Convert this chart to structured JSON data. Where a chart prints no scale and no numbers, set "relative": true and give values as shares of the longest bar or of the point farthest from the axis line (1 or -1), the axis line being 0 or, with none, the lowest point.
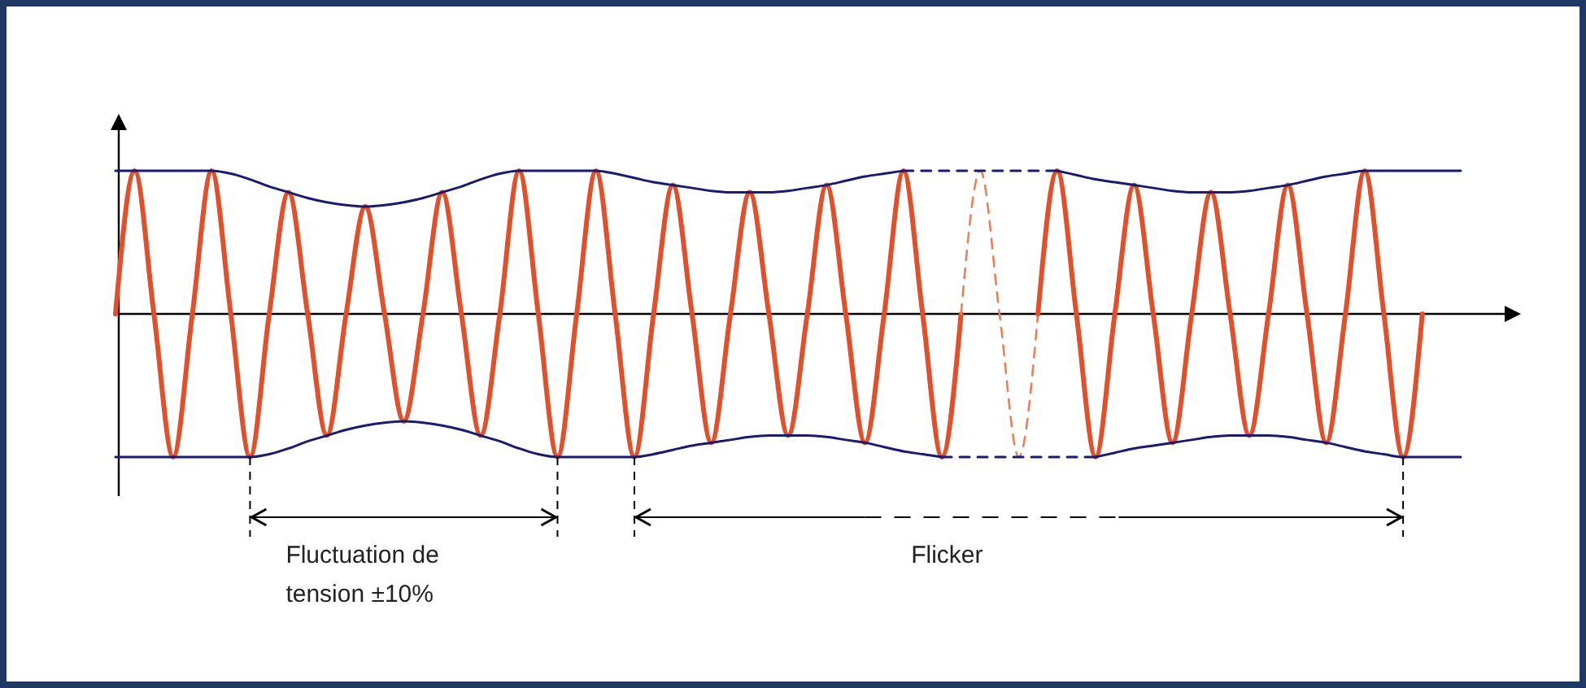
{
  "chart_data": {
    "type": "line",
    "relative": true,
    "categories": [
      null,
      null,
      null,
      null,
      null,
      null,
      null,
      null,
      null,
      null,
      null,
      null,
      null,
      null,
      null,
      null,
      null,
      null,
      null,
      null,
      null,
      null,
      null,
      null,
      null,
      null,
      null,
      null,
      null,
      null,
      null,
      null,
      null,
      null,
      null,
      null,
      null,
      null,
      null,
      null,
      null,
      null,
      null,
      null,
      null,
      null,
      null,
      null,
      null,
      null,
      null,
      null,
      null,
      null,
      null,
      null,
      null,
      null,
      null,
      null,
      null,
      null,
      null,
      null,
      null,
      null,
      null,
      null,
      null,
      null,
      null
    ],
    "series": [
      {
        "color": "#e0502a",
        "line_style": "solid",
        "values": [
          0,
          1,
          0,
          -1,
          0,
          1,
          0,
          -1,
          0,
          0.85,
          0,
          -0.85,
          0,
          0.75,
          0,
          -0.75,
          0,
          0.85,
          0,
          -0.85,
          0,
          1,
          0,
          -1,
          0,
          1,
          0,
          -1,
          0,
          0.9,
          0,
          -0.9,
          0,
          0.85,
          0,
          -0.85,
          0,
          0.9,
          0,
          -0.9,
          0,
          1,
          0,
          -1,
          0,
          null,
          null,
          null,
          null,
          null,
          null,
          null,
          null,
          null,
          null,
          null,
          null,
          null,
          null,
          null,
          null,
          null,
          null,
          null,
          null,
          null,
          null,
          null,
          null,
          null,
          null
        ]
      },
      {
        "color": "#e8805a",
        "line_style": "dashed",
        "values": [
          null,
          null,
          null,
          null,
          null,
          null,
          null,
          null,
          null,
          null,
          null,
          null,
          null,
          null,
          null,
          null,
          null,
          null,
          null,
          null,
          null,
          null,
          null,
          null,
          null,
          null,
          null,
          null,
          null,
          null,
          null,
          null,
          null,
          null,
          null,
          null,
          null,
          null,
          null,
          null,
          null,
          null,
          null,
          null,
          0,
          1,
          0,
          -1,
          0,
          null,
          null,
          null,
          null,
          null,
          null,
          null,
          null,
          null,
          null,
          null,
          null,
          null,
          null,
          null,
          null,
          null,
          null,
          null,
          null,
          null,
          null
        ]
      },
      {
        "color": "#e0502a",
        "line_style": "solid",
        "values": [
          null,
          null,
          null,
          null,
          null,
          null,
          null,
          null,
          null,
          null,
          null,
          null,
          null,
          null,
          null,
          null,
          null,
          null,
          null,
          null,
          null,
          null,
          null,
          null,
          null,
          null,
          null,
          null,
          null,
          null,
          null,
          null,
          null,
          null,
          null,
          null,
          null,
          null,
          null,
          null,
          null,
          null,
          null,
          null,
          null,
          null,
          null,
          null,
          0,
          1,
          0,
          -1,
          0,
          0.9,
          0,
          -0.9,
          0,
          0.85,
          0,
          -0.85,
          0,
          0.9,
          0,
          -0.9,
          0,
          1,
          0,
          -1,
          0,
          null,
          null
        ]
      },
      {
        "color": "#1a1a6e",
        "line_style": "solid",
        "values": [
          1,
          1,
          1,
          1,
          1,
          1,
          0.98,
          0.94,
          0.89,
          0.85,
          0.81,
          0.78,
          0.76,
          0.75,
          0.76,
          0.78,
          0.81,
          0.85,
          0.89,
          0.94,
          0.98,
          1,
          1,
          1,
          1,
          1,
          0.98,
          0.95,
          0.92,
          0.9,
          0.88,
          0.86,
          0.85,
          0.85,
          0.85,
          0.86,
          0.88,
          0.9,
          0.93,
          0.96,
          0.98,
          1,
          null,
          null,
          null,
          null,
          null,
          null,
          null,
          null,
          null,
          null,
          null,
          null,
          null,
          null,
          null,
          null,
          null,
          null,
          null,
          null,
          null,
          null,
          null,
          null,
          null,
          null,
          null,
          null,
          null
        ]
      },
      {
        "color": "#1a1a6e",
        "line_style": "dashed",
        "values": [
          null,
          null,
          null,
          null,
          null,
          null,
          null,
          null,
          null,
          null,
          null,
          null,
          null,
          null,
          null,
          null,
          null,
          null,
          null,
          null,
          null,
          null,
          null,
          null,
          null,
          null,
          null,
          null,
          null,
          null,
          null,
          null,
          null,
          null,
          null,
          null,
          null,
          null,
          null,
          null,
          null,
          1,
          1,
          1,
          1,
          1,
          1,
          1,
          1,
          1,
          null,
          null,
          null,
          null,
          null,
          null,
          null,
          null,
          null,
          null,
          null,
          null,
          null,
          null,
          null,
          null,
          null,
          null,
          null,
          null,
          null
        ]
      },
      {
        "color": "#1a1a6e",
        "line_style": "solid",
        "values": [
          null,
          null,
          null,
          null,
          null,
          null,
          null,
          null,
          null,
          null,
          null,
          null,
          null,
          null,
          null,
          null,
          null,
          null,
          null,
          null,
          null,
          null,
          null,
          null,
          null,
          null,
          null,
          null,
          null,
          null,
          null,
          null,
          null,
          null,
          null,
          null,
          null,
          null,
          null,
          null,
          null,
          null,
          null,
          null,
          null,
          null,
          null,
          null,
          null,
          1,
          0.97,
          0.94,
          0.92,
          0.9,
          0.88,
          0.86,
          0.85,
          0.85,
          0.85,
          0.86,
          0.88,
          0.9,
          0.93,
          0.96,
          0.98,
          1,
          1,
          1,
          1,
          1,
          1
        ]
      },
      {
        "color": "#1a1a6e",
        "line_style": "solid",
        "values": [
          -1,
          -1,
          -1,
          -1,
          -1,
          -1,
          -1,
          -1,
          -0.98,
          -0.94,
          -0.89,
          -0.85,
          -0.81,
          -0.78,
          -0.76,
          -0.75,
          -0.76,
          -0.78,
          -0.81,
          -0.85,
          -0.89,
          -0.94,
          -0.98,
          -1,
          -1,
          -1,
          -1,
          -1,
          -0.98,
          -0.95,
          -0.92,
          -0.9,
          -0.88,
          -0.86,
          -0.85,
          -0.85,
          -0.85,
          -0.86,
          -0.88,
          -0.9,
          -0.93,
          -0.96,
          -0.98,
          -1,
          null,
          null,
          null,
          null,
          null,
          null,
          null,
          null,
          null,
          null,
          null,
          null,
          null,
          null,
          null,
          null,
          null,
          null,
          null,
          null,
          null,
          null,
          null,
          null,
          null,
          null,
          null
        ]
      },
      {
        "color": "#1a1a6e",
        "line_style": "dashed",
        "values": [
          null,
          null,
          null,
          null,
          null,
          null,
          null,
          null,
          null,
          null,
          null,
          null,
          null,
          null,
          null,
          null,
          null,
          null,
          null,
          null,
          null,
          null,
          null,
          null,
          null,
          null,
          null,
          null,
          null,
          null,
          null,
          null,
          null,
          null,
          null,
          null,
          null,
          null,
          null,
          null,
          null,
          null,
          null,
          -1,
          -1,
          -1,
          -1,
          -1,
          -1,
          -1,
          -1,
          -1,
          null,
          null,
          null,
          null,
          null,
          null,
          null,
          null,
          null,
          null,
          null,
          null,
          null,
          null,
          null,
          null,
          null,
          null,
          null
        ]
      },
      {
        "color": "#1a1a6e",
        "line_style": "solid",
        "values": [
          null,
          null,
          null,
          null,
          null,
          null,
          null,
          null,
          null,
          null,
          null,
          null,
          null,
          null,
          null,
          null,
          null,
          null,
          null,
          null,
          null,
          null,
          null,
          null,
          null,
          null,
          null,
          null,
          null,
          null,
          null,
          null,
          null,
          null,
          null,
          null,
          null,
          null,
          null,
          null,
          null,
          null,
          null,
          null,
          null,
          null,
          null,
          null,
          null,
          null,
          null,
          -1,
          -0.97,
          -0.94,
          -0.92,
          -0.9,
          -0.88,
          -0.86,
          -0.85,
          -0.85,
          -0.85,
          -0.86,
          -0.88,
          -0.9,
          -0.93,
          -0.96,
          -0.98,
          -1,
          -1,
          -1,
          -1
        ]
      }
    ],
    "annotations": [
      "Fluctuation de tension ±10%",
      "Flicker"
    ]
  }
}
